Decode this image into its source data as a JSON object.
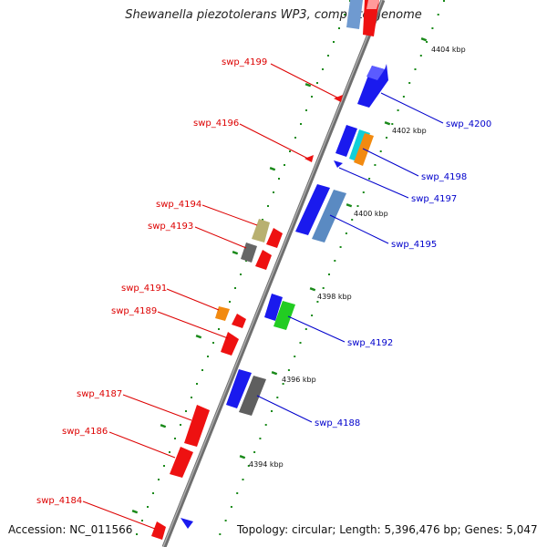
{
  "title": "Shewanella piezotolerans WP3, complete genome",
  "accession": "Accession: NC_011566",
  "topology": "Topology: circular; Length: 5,396,476 bp; Genes: 5,047",
  "colors": {
    "backbone": "#7a7a7a",
    "reverse_label": "#dd0000",
    "forward_label": "#0000cc",
    "tick_dot": "#1a8a1a"
  },
  "ticks": [
    "4404 kbp",
    "4402 kbp",
    "4400 kbp",
    "4398 kbp",
    "4396 kbp",
    "4394 kbp"
  ],
  "genes_reverse": [
    {
      "name": "swp_4199",
      "label": "swp_4199"
    },
    {
      "name": "swp_4196",
      "label": "swp_4196"
    },
    {
      "name": "swp_4194",
      "label": "swp_4194"
    },
    {
      "name": "swp_4193",
      "label": "swp_4193"
    },
    {
      "name": "swp_4191",
      "label": "swp_4191"
    },
    {
      "name": "swp_4189",
      "label": "swp_4189"
    },
    {
      "name": "swp_4187",
      "label": "swp_4187"
    },
    {
      "name": "swp_4186",
      "label": "swp_4186"
    },
    {
      "name": "swp_4184",
      "label": "swp_4184"
    }
  ],
  "genes_forward": [
    {
      "name": "swp_4200",
      "label": "swp_4200"
    },
    {
      "name": "swp_4198",
      "label": "swp_4198"
    },
    {
      "name": "swp_4197",
      "label": "swp_4197"
    },
    {
      "name": "swp_4195",
      "label": "swp_4195"
    },
    {
      "name": "swp_4192",
      "label": "swp_4192"
    },
    {
      "name": "swp_4188",
      "label": "swp_4188"
    }
  ]
}
